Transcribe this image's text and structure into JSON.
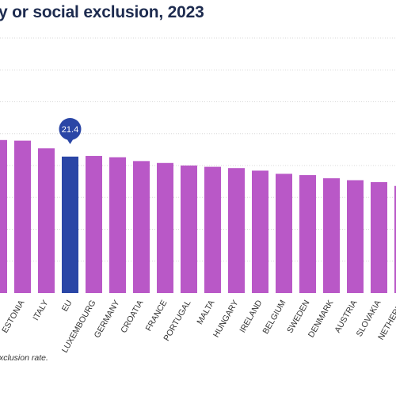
{
  "title": "y or social exclusion, 2023",
  "footnote": "xclusion rate.",
  "colors": {
    "bar": "#b958c7",
    "highlight": "#2a46a6",
    "grid": "#d8d8d8",
    "label": "#333333"
  },
  "chart_data": {
    "type": "bar",
    "categories": [
      "",
      "ESTONIA",
      "ITALY",
      "EU",
      "LUXEMBOURG",
      "GERMANY",
      "CROATIA",
      "FRANCE",
      "PORTUGAL",
      "MALTA",
      "HUNGARY",
      "IRELAND",
      "BELGIUM",
      "SWEDEN",
      "DENMARK",
      "AUSTRIA",
      "SLOVAKIA",
      "NETHERLA"
    ],
    "values": [
      24.0,
      23.9,
      22.7,
      21.4,
      21.5,
      21.3,
      20.7,
      20.4,
      20.0,
      19.8,
      19.6,
      19.2,
      18.7,
      18.5,
      18.0,
      17.7,
      17.4,
      16.8
    ],
    "highlight_category": "EU",
    "highlight_label": "21.4",
    "ylim": [
      0,
      40
    ],
    "grid": true
  }
}
